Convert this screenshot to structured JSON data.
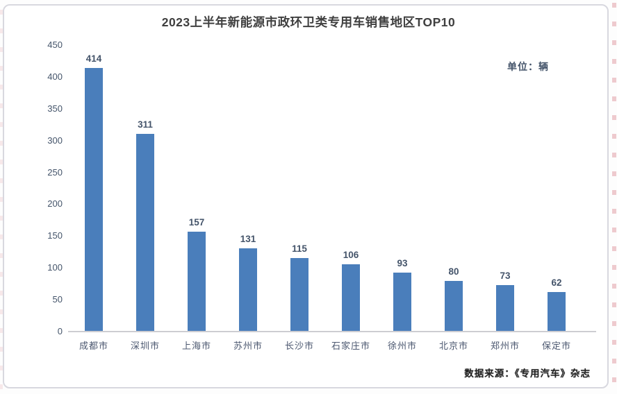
{
  "title": "2023上半年新能源市政环卫类专用车销售地区TOP10",
  "unit_label": "单位：辆",
  "footer_source": "数据来源：《专用汽车》杂志",
  "colors": {
    "bar": "#4a7ebb",
    "axis_text": "#44546a",
    "title_text": "#3f3f3f",
    "baseline": "#cdcdd2",
    "card_border": "#d8d8df",
    "edge_dash": "#e1a0a8"
  },
  "chart_data": {
    "type": "bar",
    "title": "2023上半年新能源市政环卫类专用车销售地区TOP10",
    "unit": "辆",
    "categories": [
      "成都市",
      "深圳市",
      "上海市",
      "苏州市",
      "长沙市",
      "石家庄市",
      "徐州市",
      "北京市",
      "郑州市",
      "保定市"
    ],
    "values": [
      414,
      311,
      157,
      131,
      115,
      106,
      93,
      80,
      73,
      62
    ],
    "xlabel": "",
    "ylabel": "",
    "ylim": [
      0,
      450
    ],
    "yticks": [
      0,
      50,
      100,
      150,
      200,
      250,
      300,
      350,
      400,
      450
    ],
    "grid": false,
    "legend": false,
    "bar_color": "#4a7ebb",
    "value_labels_shown": true
  }
}
